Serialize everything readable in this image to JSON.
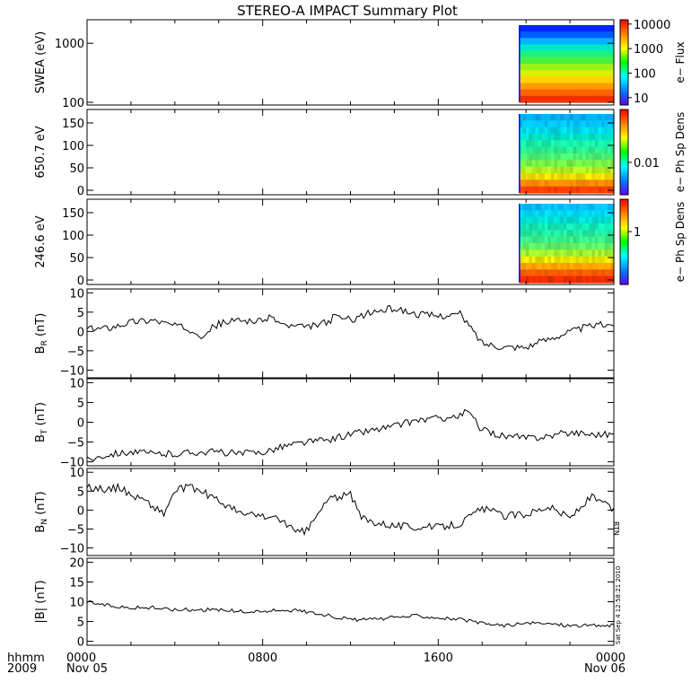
{
  "title": "STEREO-A IMPACT Summary Plot",
  "time_axis": {
    "corner_labels": [
      "hhmm",
      "2009"
    ],
    "ticks": [
      {
        "t": 0,
        "time": "0000",
        "date": "Nov 05"
      },
      {
        "t": 8,
        "time": "0800",
        "date": ""
      },
      {
        "t": 16,
        "time": "1600",
        "date": ""
      },
      {
        "t": 24,
        "time": "0000",
        "date": "Nov 06"
      }
    ],
    "range_hours": [
      0,
      24
    ]
  },
  "side_stamp": "Sat Sep  4 12:58:21 2010",
  "rtn_tag": "RTN",
  "chart_data": [
    {
      "type": "heatmap",
      "ylabel": "SWEA (eV)",
      "yscale": "log",
      "ylim": [
        90,
        2500
      ],
      "yticks": [
        "1000",
        "100"
      ],
      "ytick_values": [
        1000,
        100
      ],
      "data_start_hour": 19.7,
      "colorbar": {
        "label": "e− Flux",
        "scale": "log",
        "ticks": [
          "10000",
          "1000",
          "100",
          "10"
        ],
        "tick_values": [
          10000,
          1000,
          100,
          10
        ],
        "range": [
          5,
          15000
        ]
      },
      "rows_top_to_bottom": [
        "#0026ff",
        "#005cff",
        "#00b4ff",
        "#00e6c8",
        "#20f080",
        "#4cf03c",
        "#9cf018",
        "#d8f000",
        "#ffd200",
        "#ff9a00",
        "#ff6000",
        "#f03000"
      ]
    },
    {
      "type": "heatmap",
      "ylabel": "650.7 eV",
      "yticks": [
        "150",
        "100",
        "50",
        "0"
      ],
      "ytick_values": [
        150,
        100,
        50,
        0
      ],
      "ylim": [
        -10,
        180
      ],
      "data_start_hour": 19.7,
      "colorbar": {
        "label": "e− Ph Sp Dens",
        "ticks": [
          "0.01"
        ],
        "tick_values": [
          0.01
        ],
        "tick_fraction": 0.62
      },
      "rows_top_to_bottom": [
        "#00aaff",
        "#00c4ff",
        "#00d8e8",
        "#00e4c8",
        "#18ecaa",
        "#2cec8c",
        "#4cee70",
        "#74f048",
        "#b0f020",
        "#f0e000",
        "#ff8c00",
        "#ff4000"
      ]
    },
    {
      "type": "heatmap",
      "ylabel": "246.6 eV",
      "yticks": [
        "150",
        "100",
        "50",
        "0"
      ],
      "ytick_values": [
        150,
        100,
        50,
        0
      ],
      "ylim": [
        -10,
        180
      ],
      "data_start_hour": 19.7,
      "colorbar": {
        "label": "e− Ph Sp Dens",
        "ticks": [
          "1"
        ],
        "tick_values": [
          1
        ],
        "tick_fraction": 0.38
      },
      "rows_top_to_bottom": [
        "#00c0ff",
        "#00d4ea",
        "#00e0d0",
        "#10e8b8",
        "#22eca0",
        "#3cee84",
        "#64f060",
        "#a0f030",
        "#e8e400",
        "#ffa400",
        "#ff5c00",
        "#f02a00"
      ]
    },
    {
      "type": "line",
      "ylabel": "B_R (nT)",
      "ylabel_main": "B",
      "ylabel_sub": "R",
      "ylabel_unit": " (nT)",
      "ylim": [
        -12,
        11
      ],
      "yticks": [
        "10",
        "5",
        "0",
        "−5",
        "−10"
      ],
      "ytick_values": [
        10,
        5,
        0,
        -5,
        -10
      ],
      "x": [
        0,
        1,
        2,
        3,
        4,
        5,
        5.2,
        6,
        7,
        8,
        8.3,
        9,
        10,
        11,
        11.3,
        12,
        13,
        14,
        15,
        16,
        17,
        17.6,
        18,
        19,
        20,
        21,
        22,
        23,
        24
      ],
      "values": [
        0.5,
        1,
        2.5,
        3,
        1.5,
        0,
        -1,
        2,
        3,
        2.5,
        4,
        1.5,
        1,
        2.5,
        4,
        3,
        5,
        6,
        4.5,
        4,
        4.5,
        0,
        -3,
        -4,
        -4,
        -2,
        0,
        1.5,
        2
      ],
      "noise": 0.9
    },
    {
      "type": "line",
      "ylabel": "B_T (nT)",
      "ylabel_main": "B",
      "ylabel_sub": "T",
      "ylabel_unit": " (nT)",
      "ylim": [
        -11,
        11
      ],
      "yticks": [
        "10",
        "5",
        "0",
        "−5",
        "−10"
      ],
      "ytick_values": [
        10,
        5,
        0,
        -5,
        -10
      ],
      "x": [
        0,
        1,
        2,
        3,
        4,
        5,
        6,
        7,
        8,
        9,
        10,
        11,
        12,
        13,
        14,
        15,
        16,
        17,
        17.3,
        18,
        19,
        20,
        21,
        22,
        23,
        24
      ],
      "values": [
        -9.5,
        -8,
        -7.5,
        -8,
        -8,
        -7.5,
        -7.5,
        -8,
        -7.5,
        -6,
        -5,
        -4.5,
        -3,
        -2,
        -1,
        0.5,
        1,
        1.5,
        3,
        -2,
        -3.5,
        -4,
        -3.5,
        -2.5,
        -3,
        -3
      ],
      "noise": 0.9
    },
    {
      "type": "line",
      "ylabel": "B_N (nT)",
      "ylabel_main": "B",
      "ylabel_sub": "N",
      "ylabel_unit": " (nT)",
      "ylim": [
        -12,
        11
      ],
      "yticks": [
        "10",
        "5",
        "0",
        "−5",
        "−10"
      ],
      "ytick_values": [
        10,
        5,
        0,
        -5,
        -10
      ],
      "x": [
        0,
        1,
        1.5,
        2,
        2.5,
        3,
        3.5,
        4,
        4.5,
        5,
        6,
        7,
        8,
        9,
        9.5,
        10,
        11,
        12,
        12.5,
        13,
        14,
        15,
        16,
        17,
        18,
        19,
        20,
        21,
        22,
        23,
        24
      ],
      "values": [
        6,
        5.5,
        6,
        4,
        3,
        1,
        -1,
        5,
        6,
        5.5,
        2.5,
        -1,
        -1.5,
        -3,
        -6,
        -5.5,
        3,
        4,
        -2,
        -3,
        -4,
        -4.5,
        -4.5,
        -3.5,
        0.5,
        -1.5,
        -1,
        1,
        -2,
        3.5,
        0
      ],
      "noise": 1.0
    },
    {
      "type": "line",
      "ylabel": "|B| (nT)",
      "ylim": [
        -1,
        21
      ],
      "yticks": [
        "20",
        "15",
        "10",
        "5",
        "0"
      ],
      "ytick_values": [
        20,
        15,
        10,
        5,
        0
      ],
      "x": [
        0,
        1,
        2,
        3,
        4,
        5,
        6,
        7,
        8,
        9,
        10,
        11,
        12,
        13,
        14,
        15,
        16,
        17,
        18,
        19,
        20,
        21,
        22,
        23,
        24
      ],
      "values": [
        10,
        9,
        8.5,
        8.5,
        8,
        8,
        8,
        7.5,
        7.5,
        8,
        7.5,
        6.5,
        5.5,
        5.5,
        6,
        6.5,
        6,
        5.5,
        4.5,
        4,
        4.5,
        4.5,
        4,
        4,
        4
      ],
      "noise": 0.45
    }
  ]
}
